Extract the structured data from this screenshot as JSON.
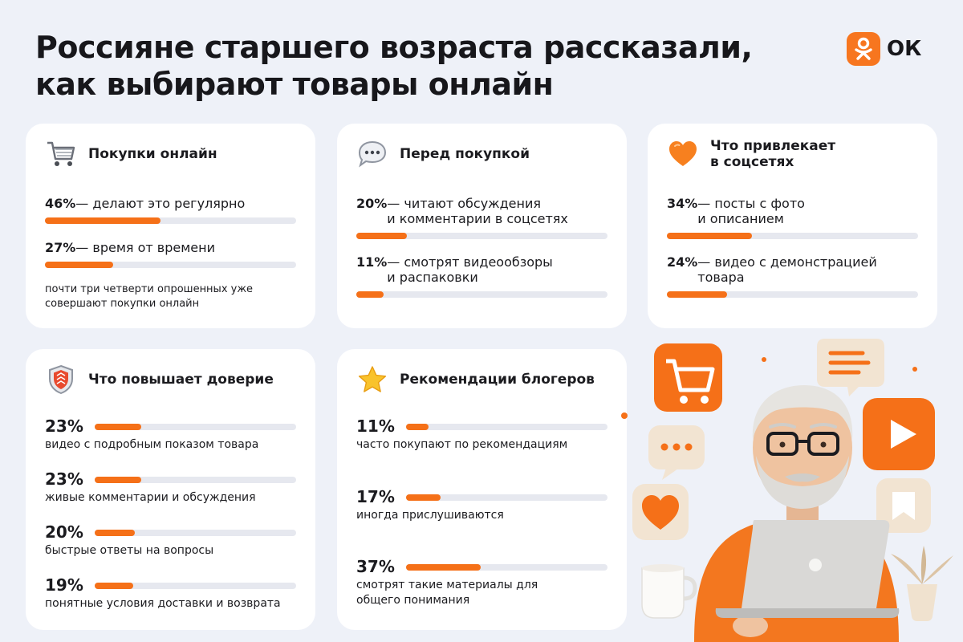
{
  "title": "Россияне старшего возраста рассказали, как выбирают товары онлайн",
  "brand": {
    "name": "ОК",
    "color": "#f7761f"
  },
  "accent": "#f57018",
  "cards": {
    "shopping": {
      "icon": "shopping-cart-icon",
      "title": "Покупки онлайн",
      "rows": [
        {
          "pct": "46%",
          "text": " — делают это регулярно",
          "value": 46
        },
        {
          "pct": "27%",
          "text": " — время от времени",
          "value": 27
        }
      ],
      "note": "почти три четверти опрошенных уже\nсовершают покупки онлайн"
    },
    "before": {
      "icon": "speech-bubble-icon",
      "title": "Перед покупкой",
      "rows": [
        {
          "pct": "20%",
          "text": " — читают обсуждения\nи комментарии в соцсетях",
          "value": 20
        },
        {
          "pct": "11%",
          "text": " — смотрят видеообзоры\nи распаковки",
          "value": 11
        }
      ]
    },
    "social": {
      "icon": "heart-icon",
      "title": "Что привлекает\nв соцсетях",
      "rows": [
        {
          "pct": "34%",
          "text": " — посты с фото\nи описанием",
          "value": 34
        },
        {
          "pct": "24%",
          "text": " — видео с демонстрацией\nтовара",
          "value": 24
        }
      ]
    },
    "trust": {
      "icon": "shield-icon",
      "title": "Что повышает доверие",
      "rows": [
        {
          "pct": "23%",
          "text": "видео с подробным показом товара",
          "value": 23
        },
        {
          "pct": "23%",
          "text": "живые комментарии и обсуждения",
          "value": 23
        },
        {
          "pct": "20%",
          "text": "быстрые ответы на вопросы",
          "value": 20
        },
        {
          "pct": "19%",
          "text": "понятные условия доставки и возврата",
          "value": 19
        }
      ]
    },
    "bloggers": {
      "icon": "star-icon",
      "title": "Рекомендации блогеров",
      "rows": [
        {
          "pct": "11%",
          "text": "часто покупают по рекомендациям",
          "value": 11
        },
        {
          "pct": "17%",
          "text": "иногда прислушиваются",
          "value": 17
        },
        {
          "pct": "37%",
          "text": "смотрят такие материалы для\nобщего понимания",
          "value": 37
        }
      ]
    }
  }
}
